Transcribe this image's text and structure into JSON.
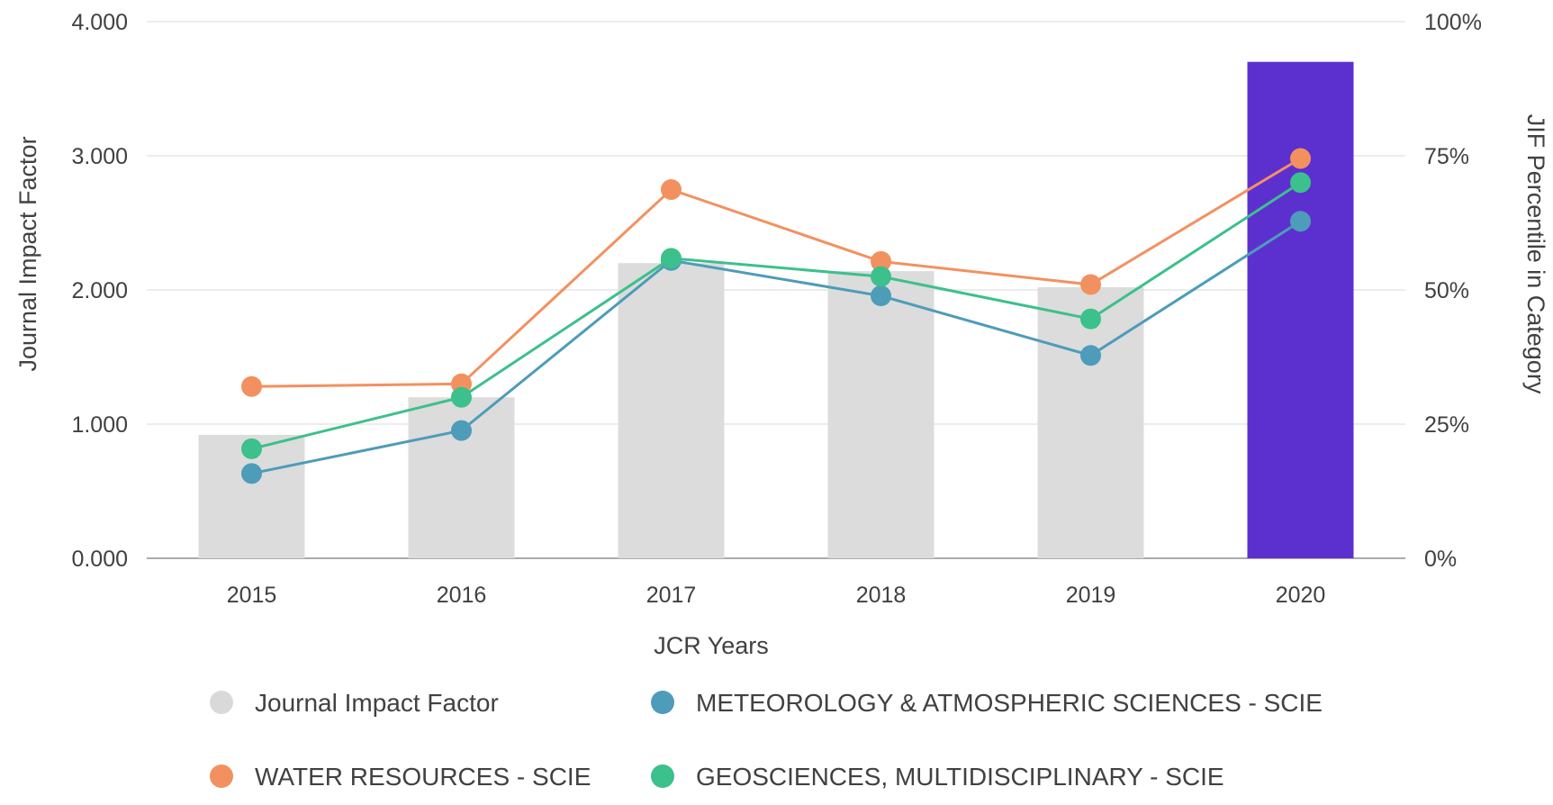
{
  "chart_data": {
    "type": "bar",
    "subtype": "bar+line dual-axis (JCR Journal Impact Factor trend)",
    "title": "",
    "xlabel": "JCR Years",
    "ylabel_left": "Journal Impact Factor",
    "ylabel_right": "JIF Percentile in Category",
    "categories": [
      "2015",
      "2016",
      "2017",
      "2018",
      "2019",
      "2020"
    ],
    "left_axis": {
      "min": 0,
      "max": 4,
      "tick_labels": [
        "0.000",
        "1.000",
        "2.000",
        "3.000",
        "4.000"
      ]
    },
    "right_axis": {
      "min": 0,
      "max": 100,
      "tick_labels": [
        "0%",
        "25%",
        "50%",
        "75%",
        "100%"
      ]
    },
    "grid": true,
    "legend_position": "bottom",
    "bars": {
      "name": "Journal Impact Factor",
      "axis": "left",
      "values": [
        0.92,
        1.2,
        2.2,
        2.14,
        2.02,
        3.7
      ],
      "default_color": "#dcdcdc",
      "highlight_color": "#5c30cf",
      "highlight_index": 5
    },
    "series": [
      {
        "name": "WATER RESOURCES - SCIE",
        "axis": "right",
        "color": "#f2915f",
        "values": [
          32,
          32.5,
          68.7,
          55.3,
          51,
          74.5
        ]
      },
      {
        "name": "METEOROLOGY & ATMOSPHERIC SCIENCES - SCIE",
        "axis": "right",
        "color": "#4d9cb9",
        "values": [
          15.8,
          23.8,
          55.5,
          48.9,
          37.8,
          62.8
        ]
      },
      {
        "name": "GEOSCIENCES, MULTIDISCIPLINARY - SCIE",
        "axis": "right",
        "color": "#3cc08c",
        "values": [
          20.4,
          30,
          55.9,
          52.5,
          44.6,
          70
        ]
      }
    ],
    "legend": [
      {
        "label": "Journal Impact Factor",
        "color": "#d9d9d9",
        "row": 0,
        "col": 0
      },
      {
        "label": "METEOROLOGY & ATMOSPHERIC SCIENCES - SCIE",
        "color": "#4d9cb9",
        "row": 0,
        "col": 1
      },
      {
        "label": "WATER RESOURCES - SCIE",
        "color": "#f2915f",
        "row": 1,
        "col": 0
      },
      {
        "label": "GEOSCIENCES, MULTIDISCIPLINARY - SCIE",
        "color": "#3cc08c",
        "row": 1,
        "col": 1
      }
    ],
    "colors": {
      "gridline": "#ececec",
      "axis_line": "#ababab",
      "text": "#414042"
    }
  }
}
